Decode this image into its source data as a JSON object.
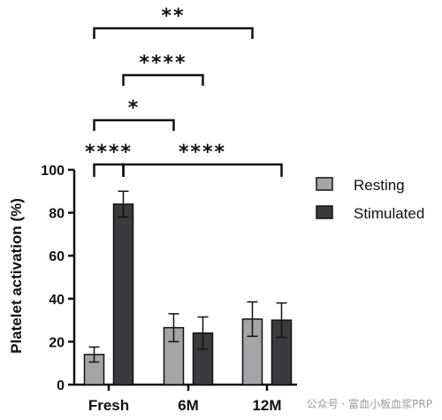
{
  "chart_data": {
    "type": "bar",
    "ylabel": "Platelet activation (%)",
    "xlabel": "",
    "ylim": [
      0,
      100
    ],
    "yticks": [
      0,
      20,
      40,
      60,
      80,
      100
    ],
    "categories": [
      "Fresh",
      "6M",
      "12M"
    ],
    "series": [
      {
        "name": "Resting",
        "color": "#a5a5a9",
        "values": [
          14,
          26.5,
          30.5
        ],
        "errors": [
          3.5,
          6.5,
          8
        ]
      },
      {
        "name": "Stimulated",
        "color": "#3b3b3f",
        "values": [
          84,
          24,
          30
        ],
        "errors": [
          6,
          7.5,
          8
        ]
      }
    ],
    "legend": {
      "position": "right",
      "items": [
        "Resting",
        "Stimulated"
      ]
    },
    "significance": [
      {
        "label": "****",
        "from": [
          0,
          0
        ],
        "to": [
          0,
          1
        ]
      },
      {
        "label": "****",
        "from": [
          0,
          1
        ],
        "to": [
          2,
          1
        ]
      },
      {
        "label": "*",
        "from": [
          0,
          0
        ],
        "to": [
          1,
          0
        ]
      },
      {
        "label": "****",
        "from": [
          0,
          1
        ],
        "to": [
          1,
          1
        ]
      },
      {
        "label": "**",
        "from": [
          0,
          0
        ],
        "to": [
          2,
          0
        ]
      }
    ]
  },
  "watermark": "公众号 · 富血小板血浆PRP"
}
